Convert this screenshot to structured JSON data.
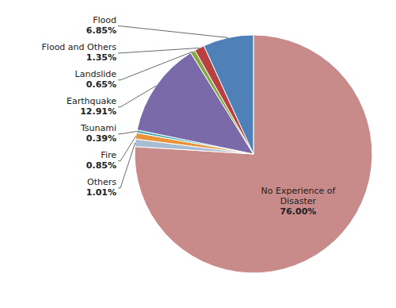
{
  "chart_data": {
    "type": "pie",
    "categories": [
      "No Experience of\nDisaster",
      "Others",
      "Fire",
      "Tsunami",
      "Earthquake",
      "Landslide",
      "Flood and Others",
      "Flood"
    ],
    "values": [
      76.0,
      1.01,
      0.85,
      0.39,
      12.91,
      0.65,
      1.35,
      6.85
    ],
    "value_labels": [
      "76.00%",
      "1.01%",
      "0.85%",
      "0.39%",
      "12.91%",
      "0.65%",
      "1.35%",
      "6.85%"
    ],
    "colors": [
      "#c98a8a",
      "#a8bcd4",
      "#e8943a",
      "#4aafb8",
      "#7b6aaa",
      "#85aa45",
      "#b84040",
      "#5080b8"
    ],
    "data_labels": true
  }
}
